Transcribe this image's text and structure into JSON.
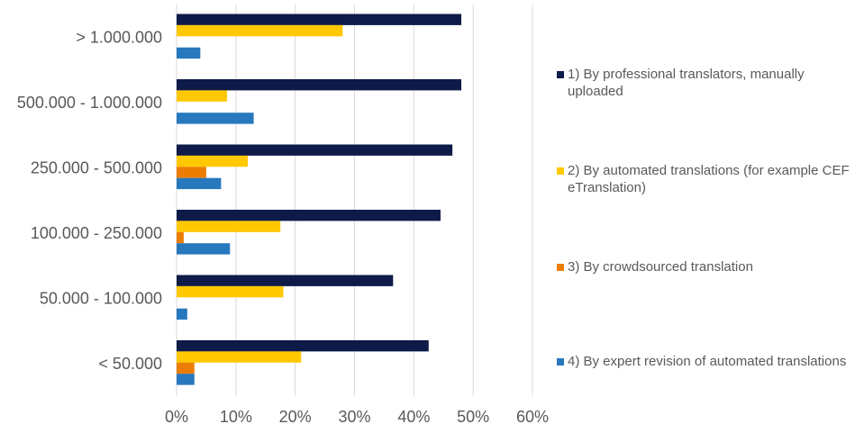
{
  "chart_data": {
    "type": "bar",
    "orientation": "horizontal",
    "categories": [
      "> 1.000.000",
      "500.000 - 1.000.000",
      "250.000 - 500.000",
      "100.000 - 250.000",
      "50.000 - 100.000",
      "< 50.000"
    ],
    "series": [
      {
        "name": "1) By professional translators, manually uploaded",
        "color": "#0e1a47",
        "values": [
          48,
          48,
          46.5,
          44.5,
          36.5,
          42.5
        ]
      },
      {
        "name": "2) By automated translations (for example CEF eTranslation)",
        "color": "#ffc800",
        "values": [
          28,
          8.5,
          12,
          17.5,
          18,
          21
        ]
      },
      {
        "name": "3) By crowdsourced translation",
        "color": "#ed7d01",
        "values": [
          0,
          0,
          5,
          1.2,
          0,
          3
        ]
      },
      {
        "name": "4) By expert revision of automated translations",
        "color": "#2878be",
        "values": [
          4,
          13,
          7.5,
          9,
          1.8,
          3
        ]
      }
    ],
    "x_ticks": [
      "0%",
      "10%",
      "20%",
      "30%",
      "40%",
      "50%",
      "60%"
    ],
    "xlim": [
      0,
      60
    ],
    "grid": "vertical",
    "legend_position": "right",
    "title": "",
    "xlabel": "",
    "ylabel": ""
  }
}
